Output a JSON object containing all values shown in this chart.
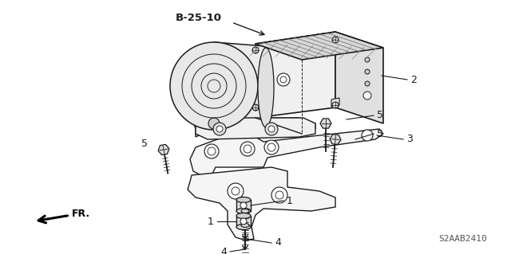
{
  "bg_color": "#ffffff",
  "line_color": "#1a1a1a",
  "title_label": "B-25-10",
  "diagram_code": "S2AAB2410",
  "fr_label": "FR.",
  "figsize": [
    6.4,
    3.19
  ],
  "dpi": 100
}
